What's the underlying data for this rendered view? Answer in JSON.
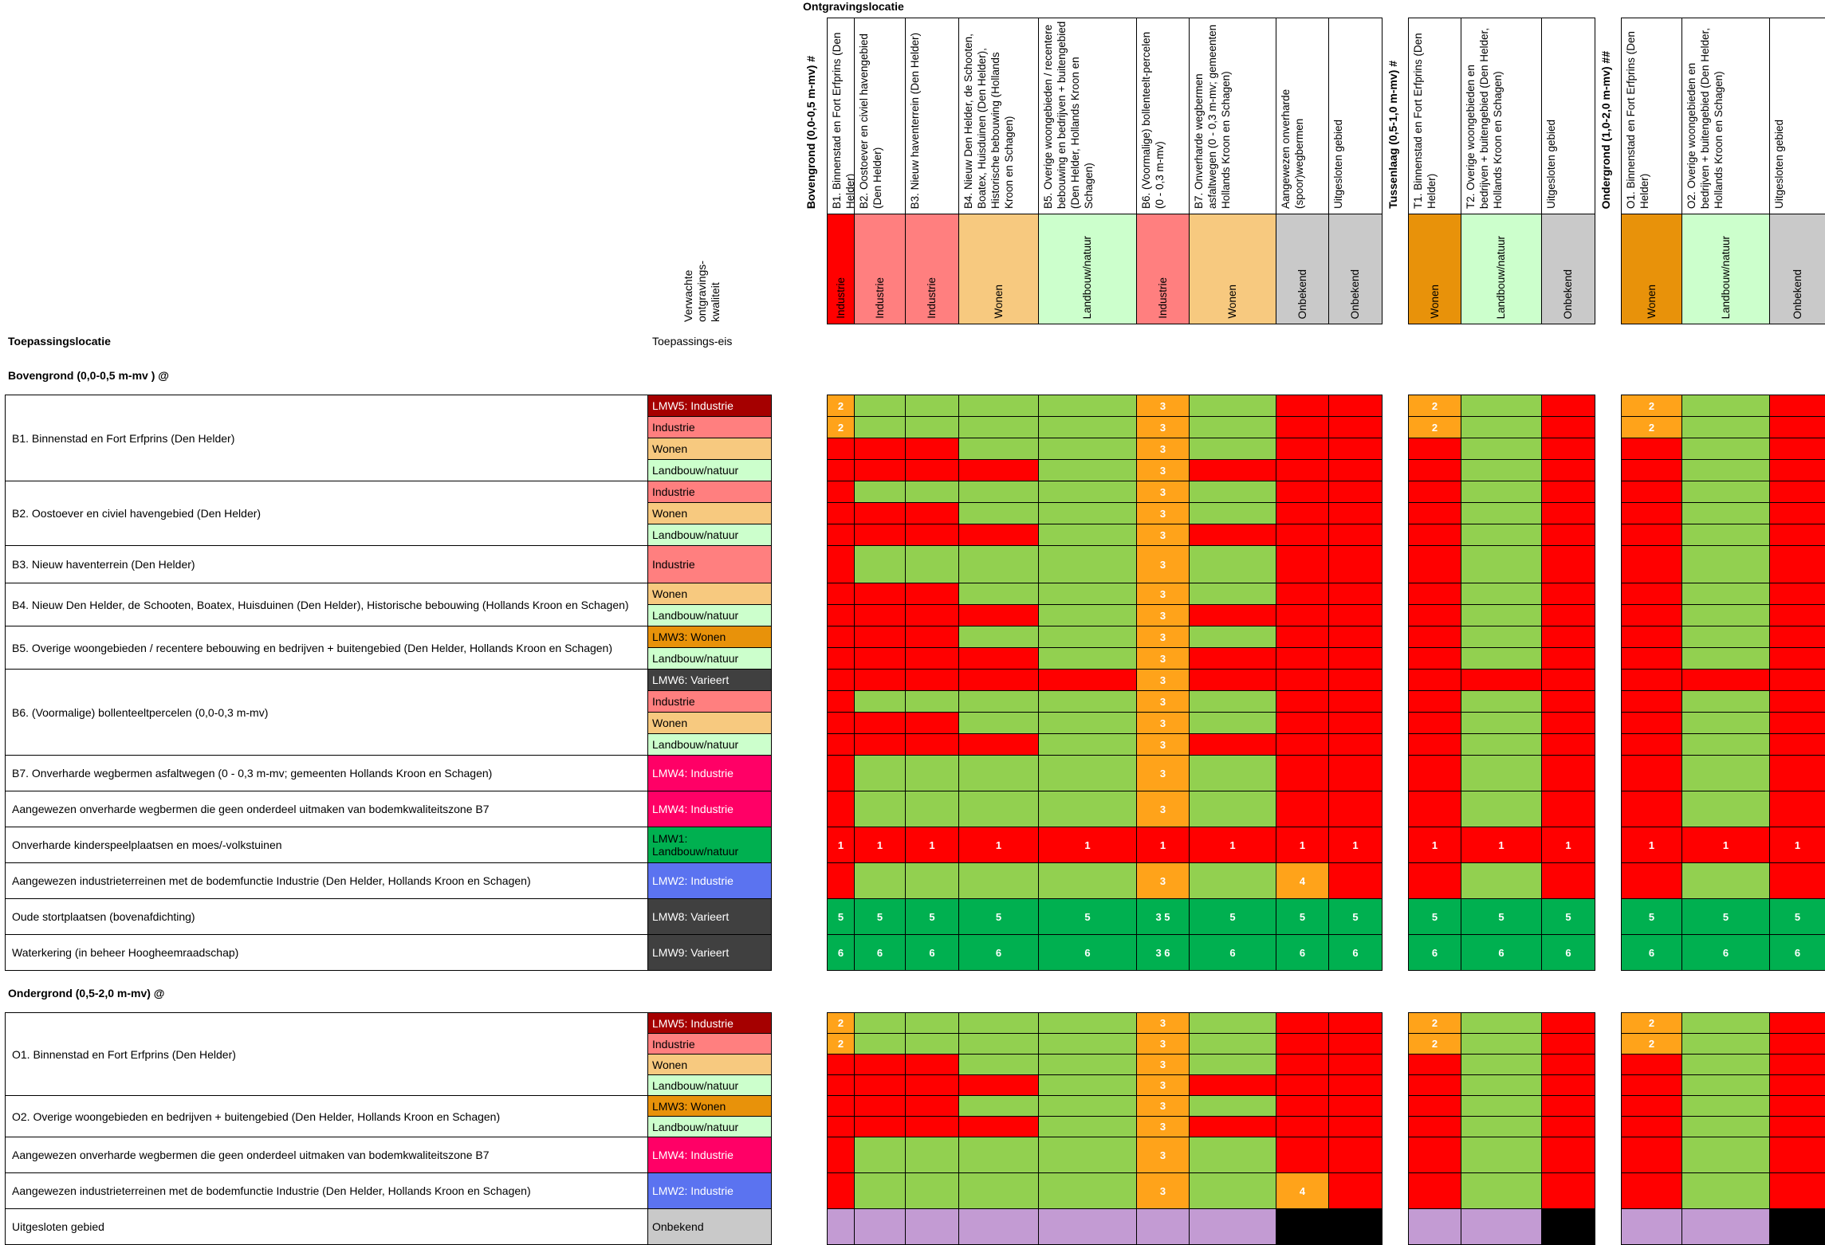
{
  "header": {
    "ontgravingslocatie": "Ontgravingslocatie",
    "toepassingslocatie": "Toepassingslocatie",
    "verwachte": "Verwachte ontgravings-kwaliteit",
    "toepassingseis": "Toepassings-eis"
  },
  "columns": [
    {
      "label": "Bovengrond (0,0-0,5 m-mv) #",
      "kind": "section"
    },
    {
      "label": "B1. Binnenstad en Fort Erfprins (Den Helder)",
      "category": "Industrie",
      "color": "#ff0000"
    },
    {
      "label": "B2. Oostoever en civiel havengebied (Den Helder)",
      "category": "Industrie",
      "color": "#ff7f7f"
    },
    {
      "label": "B3. Nieuw haventerrein (Den Helder)",
      "category": "Industrie",
      "color": "#ff7f7f"
    },
    {
      "label": "B4. Nieuw Den Helder, de Schooten, Boatex, Huisduinen (Den Helder), Historische bebouwing (Hollands Kroon en Schagen)",
      "category": "Wonen",
      "color": "#f7c97f"
    },
    {
      "label": "B5. Overige woongebieden / recentere bebouwing en bedrijven + buitengebied (Den Helder, Hollands Kroon en Schagen)",
      "category": "Landbouw/natuur",
      "color": "#ccffcc"
    },
    {
      "label": "B6. (Voormalige) bollenteelt-percelen (0 - 0,3 m-mv)",
      "category": "Industrie",
      "color": "#ff7f7f"
    },
    {
      "label": "B7. Onverharde wegbermen asfaltwegen (0 - 0,3 m-mv; gemeenten Hollands Kroon en Schagen)",
      "category": "Wonen",
      "color": "#f7c97f"
    },
    {
      "label": "Aangewezen onverharde (spoor)wegbermen",
      "category": "Onbekend",
      "color": "#c9c9c9"
    },
    {
      "label": "Uitgesloten gebied",
      "category": "Onbekend",
      "color": "#c9c9c9"
    },
    {
      "label": "Tussenlaag (0,5-1,0 m-mv) #",
      "kind": "section"
    },
    {
      "label": "T1. Binnenstad en Fort Erfprins (Den Helder)",
      "category": "Wonen",
      "color": "#e8920a"
    },
    {
      "label": "T2. Overige woongebieden en bedrijven + buitengebied (Den Helder, Hollands Kroon en Schagen)",
      "category": "Landbouw/natuur",
      "color": "#ccffcc"
    },
    {
      "label": "Uitgesloten gebied",
      "category": "Onbekend",
      "color": "#c9c9c9"
    },
    {
      "label": "Ondergrond (1,0-2,0 m-mv) ##",
      "kind": "section"
    },
    {
      "label": "O1. Binnenstad en Fort Erfprins (Den Helder)",
      "category": "Wonen",
      "color": "#e8920a"
    },
    {
      "label": "O2. Overige woongebieden en bedrijven + buitengebied (Den Helder, Hollands Kroon en Schagen)",
      "category": "Landbouw/natuur",
      "color": "#ccffcc"
    },
    {
      "label": "Uitgesloten gebied",
      "category": "Onbekend",
      "color": "#c9c9c9"
    }
  ],
  "sections": {
    "boven": "Bovengrond (0,0-0,5 m-mv ) @",
    "onder": "Ondergrond (0,5-2,0 m-mv) @"
  },
  "groups": [
    {
      "label": "B1. Binnenstad en Fort Erfprins (Den Helder)",
      "rows": [
        {
          "req": "LMW5: Industrie",
          "color": "#a50000",
          "text": "#ffffff",
          "cells": "O,G,G,G,G,O3,G,R,R,|O,G,R,|O,G,R",
          "nums": [
            "2",
            "",
            "",
            "",
            "",
            "3",
            "",
            "",
            "",
            "2",
            "",
            "",
            "2",
            "",
            ""
          ]
        },
        {
          "req": "Industrie",
          "color": "#ff7f7f",
          "text": "#000000",
          "cells": "O,G,G,G,G,O3,G,R,R,|O,G,R,|O,G,R",
          "nums": [
            "2",
            "",
            "",
            "",
            "",
            "3",
            "",
            "",
            "",
            "2",
            "",
            "",
            "2",
            "",
            ""
          ]
        },
        {
          "req": "Wonen",
          "color": "#f7c97f",
          "text": "#000000",
          "cells": "R,R,R,G,G,O3,G,R,R,|R,G,R,|R,G,R",
          "nums": [
            "",
            "",
            "",
            "",
            "",
            "3",
            "",
            "",
            "",
            "",
            "",
            "",
            "",
            "",
            ""
          ]
        },
        {
          "req": "Landbouw/natuur",
          "color": "#ccffcc",
          "text": "#000000",
          "cells": "R,R,R,R,G,O3,R,R,R,|R,G,R,|R,G,R",
          "nums": [
            "",
            "",
            "",
            "",
            "",
            "3",
            "",
            "",
            "",
            "",
            "",
            "",
            "",
            "",
            ""
          ]
        }
      ]
    },
    {
      "label": "B2. Oostoever en civiel havengebied (Den Helder)",
      "rows": [
        {
          "req": "Industrie",
          "color": "#ff7f7f",
          "text": "#000000",
          "cells": "R,G,G,G,G,O3,G,R,R,|R,G,R,|R,G,R",
          "nums": [
            "",
            "",
            "",
            "",
            "",
            "3",
            "",
            "",
            "",
            "",
            "",
            "",
            "",
            "",
            ""
          ]
        },
        {
          "req": "Wonen",
          "color": "#f7c97f",
          "text": "#000000",
          "cells": "R,R,R,G,G,O3,G,R,R,|R,G,R,|R,G,R",
          "nums": [
            "",
            "",
            "",
            "",
            "",
            "3",
            "",
            "",
            "",
            "",
            "",
            "",
            "",
            "",
            ""
          ]
        },
        {
          "req": "Landbouw/natuur",
          "color": "#ccffcc",
          "text": "#000000",
          "cells": "R,R,R,R,G,O3,R,R,R,|R,G,R,|R,G,R",
          "nums": [
            "",
            "",
            "",
            "",
            "",
            "3",
            "",
            "",
            "",
            "",
            "",
            "",
            "",
            "",
            ""
          ]
        }
      ]
    },
    {
      "label": "B3. Nieuw haventerrein (Den Helder)",
      "rows": [
        {
          "req": "Industrie",
          "color": "#ff7f7f",
          "text": "#000000",
          "cells": "R,G,G,G,G,O3,G,R,R,|R,G,R,|R,G,R",
          "nums": [
            "",
            "",
            "",
            "",
            "",
            "3",
            "",
            "",
            "",
            "",
            "",
            "",
            "",
            "",
            ""
          ]
        }
      ]
    },
    {
      "label": "B4. Nieuw Den Helder, de Schooten, Boatex, Huisduinen (Den Helder), Historische bebouwing (Hollands Kroon en Schagen)",
      "rows": [
        {
          "req": "Wonen",
          "color": "#f7c97f",
          "text": "#000000",
          "cells": "R,R,R,G,G,O3,G,R,R,|R,G,R,|R,G,R",
          "nums": [
            "",
            "",
            "",
            "",
            "",
            "3",
            "",
            "",
            "",
            "",
            "",
            "",
            "",
            "",
            ""
          ]
        },
        {
          "req": "Landbouw/natuur",
          "color": "#ccffcc",
          "text": "#000000",
          "cells": "R,R,R,R,G,O3,R,R,R,|R,G,R,|R,G,R",
          "nums": [
            "",
            "",
            "",
            "",
            "",
            "3",
            "",
            "",
            "",
            "",
            "",
            "",
            "",
            "",
            ""
          ]
        }
      ]
    },
    {
      "label": "B5. Overige woongebieden / recentere bebouwing en bedrijven + buitengebied (Den Helder, Hollands Kroon en Schagen)",
      "rows": [
        {
          "req": "LMW3: Wonen",
          "color": "#e8920a",
          "text": "#000000",
          "cells": "R,R,R,G,G,O3,G,R,R,|R,G,R,|R,G,R",
          "nums": [
            "",
            "",
            "",
            "",
            "",
            "3",
            "",
            "",
            "",
            "",
            "",
            "",
            "",
            "",
            ""
          ]
        },
        {
          "req": "Landbouw/natuur",
          "color": "#ccffcc",
          "text": "#000000",
          "cells": "R,R,R,R,G,O3,R,R,R,|R,G,R,|R,G,R",
          "nums": [
            "",
            "",
            "",
            "",
            "",
            "3",
            "",
            "",
            "",
            "",
            "",
            "",
            "",
            "",
            ""
          ]
        }
      ]
    },
    {
      "label": "B6. (Voormalige) bollenteeltpercelen (0,0-0,3 m-mv)",
      "rows": [
        {
          "req": "LMW6: Varieert",
          "color": "#404040",
          "text": "#ffffff",
          "cells": "R,R,R,R,R,O3,R,R,R,|R,R,R,|R,R,R",
          "nums": [
            "",
            "",
            "",
            "",
            "",
            "3",
            "",
            "",
            "",
            "",
            "",
            "",
            "",
            "",
            ""
          ]
        },
        {
          "req": "Industrie",
          "color": "#ff7f7f",
          "text": "#000000",
          "cells": "R,G,G,G,G,O3,G,R,R,|R,G,R,|R,G,R",
          "nums": [
            "",
            "",
            "",
            "",
            "",
            "3",
            "",
            "",
            "",
            "",
            "",
            "",
            "",
            "",
            ""
          ]
        },
        {
          "req": "Wonen",
          "color": "#f7c97f",
          "text": "#000000",
          "cells": "R,R,R,G,G,O3,G,R,R,|R,G,R,|R,G,R",
          "nums": [
            "",
            "",
            "",
            "",
            "",
            "3",
            "",
            "",
            "",
            "",
            "",
            "",
            "",
            "",
            ""
          ]
        },
        {
          "req": "Landbouw/natuur",
          "color": "#ccffcc",
          "text": "#000000",
          "cells": "R,R,R,R,G,O3,R,R,R,|R,G,R,|R,G,R",
          "nums": [
            "",
            "",
            "",
            "",
            "",
            "3",
            "",
            "",
            "",
            "",
            "",
            "",
            "",
            "",
            ""
          ]
        }
      ]
    },
    {
      "label": "B7. Onverharde wegbermen asfaltwegen (0 - 0,3 m-mv; gemeenten Hollands Kroon en Schagen)",
      "rows": [
        {
          "req": "LMW4: Industrie",
          "color": "#ff0066",
          "text": "#ffffff",
          "cells": "R,G,G,G,G,O3,G,R,R,|R,G,R,|R,G,R",
          "nums": [
            "",
            "",
            "",
            "",
            "",
            "3",
            "",
            "",
            "",
            "",
            "",
            "",
            "",
            "",
            ""
          ]
        }
      ]
    },
    {
      "label": "Aangewezen onverharde wegbermen die geen onderdeel uitmaken van bodemkwaliteitszone B7",
      "rows": [
        {
          "req": "LMW4: Industrie",
          "color": "#ff0066",
          "text": "#ffffff",
          "cells": "R,G,G,G,G,O3,G,R,R,|R,G,R,|R,G,R",
          "nums": [
            "",
            "",
            "",
            "",
            "",
            "3",
            "",
            "",
            "",
            "",
            "",
            "",
            "",
            "",
            ""
          ]
        }
      ]
    },
    {
      "label": "Onverharde kinderspeelplaatsen en moes/-volkstuinen",
      "rows": [
        {
          "req": "LMW1: Landbouw/natuur",
          "color": "#00b050",
          "text": "#000000",
          "cells": "R,R,R,R,R,R,R,R,R,|R,R,R,|R,R,R",
          "nums": [
            "1",
            "1",
            "1",
            "1",
            "1",
            "1",
            "1",
            "1",
            "1",
            "1",
            "1",
            "1",
            "1",
            "1",
            "1"
          ]
        }
      ]
    },
    {
      "label": "Aangewezen industrieterreinen met de bodemfunctie Industrie (Den Helder, Hollands Kroon en Schagen)",
      "rows": [
        {
          "req": "LMW2: Industrie",
          "color": "#5b73f0",
          "text": "#ffffff",
          "cells": "R,G,G,G,G,O3,G,O,R,|R,G,R,|R,G,R",
          "nums": [
            "",
            "",
            "",
            "",
            "",
            "3",
            "",
            "4",
            "",
            "",
            "",
            "",
            "",
            "",
            ""
          ]
        }
      ]
    },
    {
      "label": "Oude stortplaatsen (bovenafdichting)",
      "rows": [
        {
          "req": "LMW8: Varieert",
          "color": "#404040",
          "text": "#ffffff",
          "cells": "D,D,D,D,D,D,D,D,D,|D,D,D,|D,D,D",
          "nums": [
            "5",
            "5",
            "5",
            "5",
            "5",
            "3  5",
            "5",
            "5",
            "5",
            "5",
            "5",
            "5",
            "5",
            "5",
            "5"
          ]
        }
      ]
    },
    {
      "label": "Waterkering (in beheer Hoogheemraadschap)",
      "rows": [
        {
          "req": "LMW9: Varieert",
          "color": "#404040",
          "text": "#ffffff",
          "cells": "D,D,D,D,D,D,D,D,D,|D,D,D,|D,D,D",
          "nums": [
            "6",
            "6",
            "6",
            "6",
            "6",
            "3  6",
            "6",
            "6",
            "6",
            "6",
            "6",
            "6",
            "6",
            "6",
            "6"
          ]
        }
      ]
    }
  ],
  "groups2": [
    {
      "label": "O1. Binnenstad en Fort Erfprins (Den Helder)",
      "rows": [
        {
          "req": "LMW5: Industrie",
          "color": "#a50000",
          "text": "#ffffff",
          "cells": "O,G,G,G,G,O3,G,R,R,|O,G,R,|O,G,R",
          "nums": [
            "2",
            "",
            "",
            "",
            "",
            "3",
            "",
            "",
            "",
            "2",
            "",
            "",
            "2",
            "",
            ""
          ]
        },
        {
          "req": "Industrie",
          "color": "#ff7f7f",
          "text": "#000000",
          "cells": "O,G,G,G,G,O3,G,R,R,|O,G,R,|O,G,R",
          "nums": [
            "2",
            "",
            "",
            "",
            "",
            "3",
            "",
            "",
            "",
            "2",
            "",
            "",
            "2",
            "",
            ""
          ]
        },
        {
          "req": "Wonen",
          "color": "#f7c97f",
          "text": "#000000",
          "cells": "R,R,R,G,G,O3,G,R,R,|R,G,R,|R,G,R",
          "nums": [
            "",
            "",
            "",
            "",
            "",
            "3",
            "",
            "",
            "",
            "",
            "",
            "",
            "",
            "",
            ""
          ]
        },
        {
          "req": "Landbouw/natuur",
          "color": "#ccffcc",
          "text": "#000000",
          "cells": "R,R,R,R,G,O3,R,R,R,|R,G,R,|R,G,R",
          "nums": [
            "",
            "",
            "",
            "",
            "",
            "3",
            "",
            "",
            "",
            "",
            "",
            "",
            "",
            "",
            ""
          ]
        }
      ]
    },
    {
      "label": "O2. Overige woongebieden en bedrijven + buitengebied (Den Helder, Hollands Kroon en Schagen)",
      "rows": [
        {
          "req": "LMW3: Wonen",
          "color": "#e8920a",
          "text": "#000000",
          "cells": "R,R,R,G,G,O3,G,R,R,|R,G,R,|R,G,R",
          "nums": [
            "",
            "",
            "",
            "",
            "",
            "3",
            "",
            "",
            "",
            "",
            "",
            "",
            "",
            "",
            ""
          ]
        },
        {
          "req": "Landbouw/natuur",
          "color": "#ccffcc",
          "text": "#000000",
          "cells": "R,R,R,R,G,O3,R,R,R,|R,G,R,|R,G,R",
          "nums": [
            "",
            "",
            "",
            "",
            "",
            "3",
            "",
            "",
            "",
            "",
            "",
            "",
            "",
            "",
            ""
          ]
        }
      ]
    },
    {
      "label": "Aangewezen onverharde wegbermen die geen onderdeel uitmaken van bodemkwaliteitszone B7",
      "rows": [
        {
          "req": "LMW4: Industrie",
          "color": "#ff0066",
          "text": "#ffffff",
          "cells": "R,G,G,G,G,O3,G,R,R,|R,G,R,|R,G,R",
          "nums": [
            "",
            "",
            "",
            "",
            "",
            "3",
            "",
            "",
            "",
            "",
            "",
            "",
            "",
            "",
            ""
          ]
        }
      ]
    },
    {
      "label": "Aangewezen industrieterreinen met de bodemfunctie Industrie (Den Helder, Hollands Kroon en Schagen)",
      "rows": [
        {
          "req": "LMW2: Industrie",
          "color": "#5b73f0",
          "text": "#ffffff",
          "cells": "R,G,G,G,G,O3,G,O,R,|R,G,R,|R,G,R",
          "nums": [
            "",
            "",
            "",
            "",
            "",
            "3",
            "",
            "4",
            "",
            "",
            "",
            "",
            "",
            "",
            ""
          ]
        }
      ]
    },
    {
      "label": "Uitgesloten gebied",
      "rows": [
        {
          "req": "Onbekend",
          "color": "#c9c9c9",
          "text": "#000000",
          "cells": "P,P,P,P,P,P,P,K,K,|P,P,K,|P,P,K",
          "nums": [
            "",
            "",
            "",
            "",
            "",
            "",
            "",
            "",
            "",
            "",
            "",
            "",
            "",
            "",
            ""
          ]
        }
      ]
    }
  ]
}
